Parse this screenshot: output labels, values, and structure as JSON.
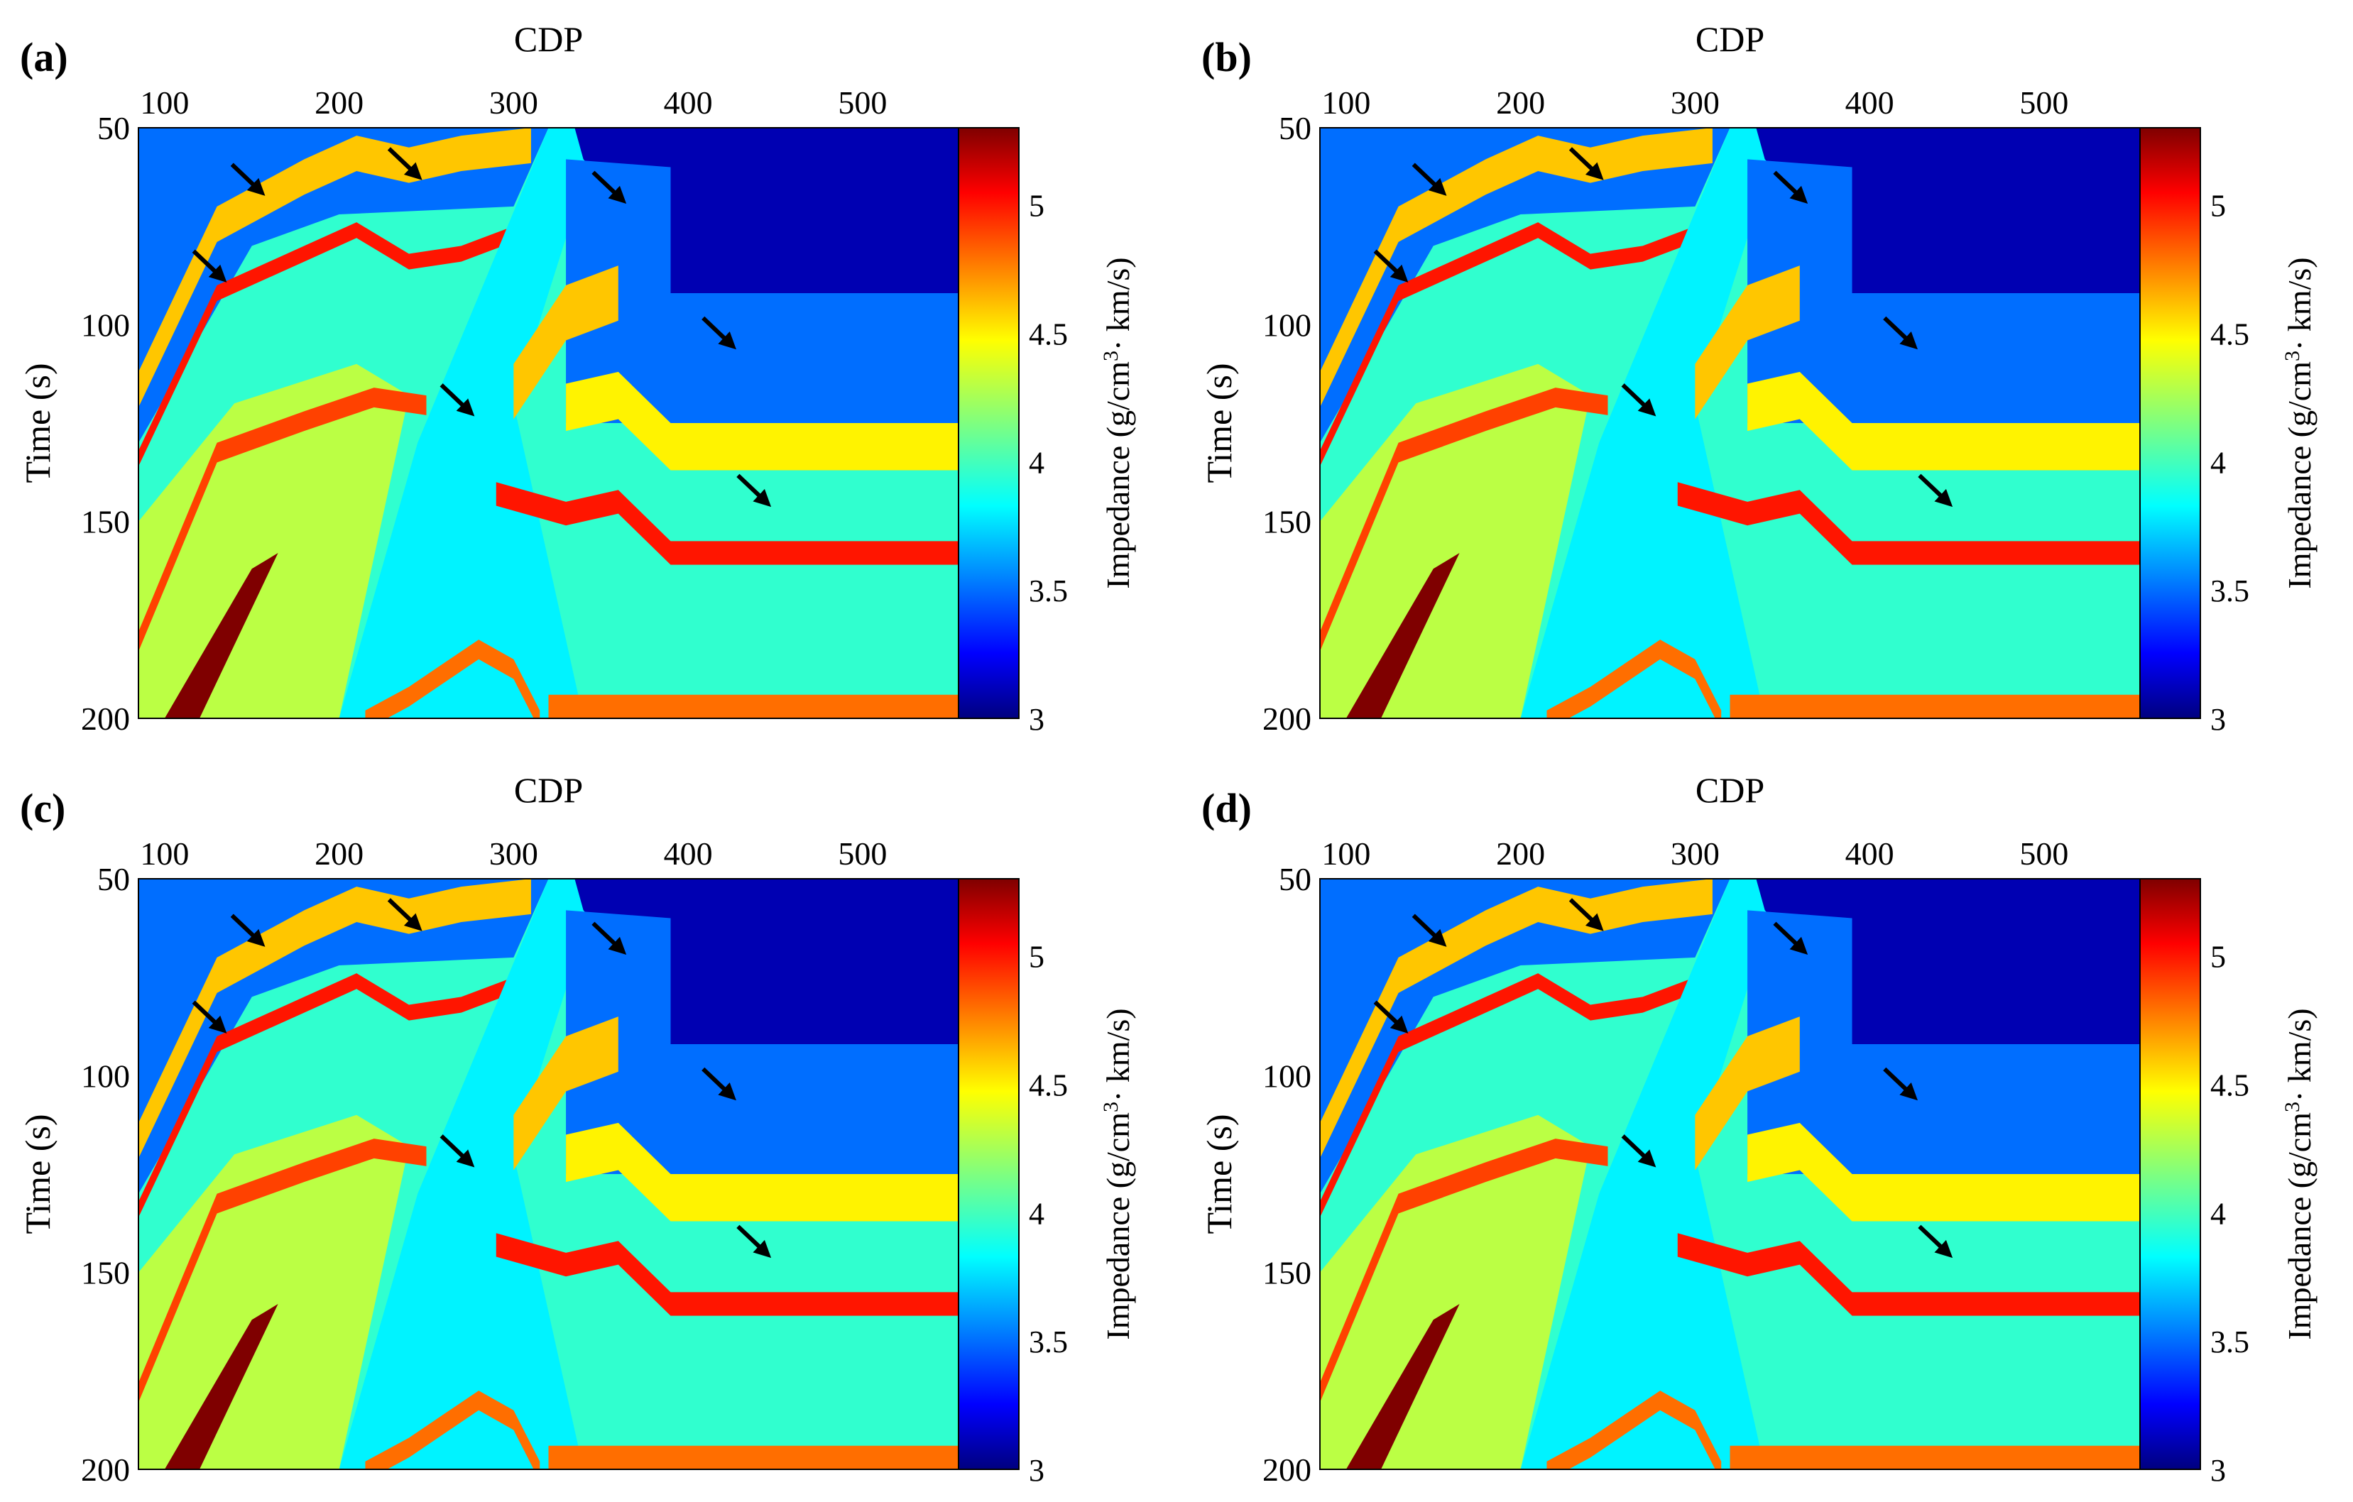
{
  "figure": {
    "panels": [
      {
        "label": "(a)",
        "xlabel": "CDP",
        "ylabel": "Time (s)",
        "colorbar_label": "Impedance (g/cm",
        "colorbar_sup": "3",
        "colorbar_label_tail": "· km/s)"
      },
      {
        "label": "(b)",
        "xlabel": "CDP",
        "ylabel": "Time (s)",
        "colorbar_label": "Impedance (g/cm",
        "colorbar_sup": "3",
        "colorbar_label_tail": "· km/s)"
      },
      {
        "label": "(c)",
        "xlabel": "CDP",
        "ylabel": "Time (s)",
        "colorbar_label": "Impedance (g/cm",
        "colorbar_sup": "3",
        "colorbar_label_tail": "· km/s)"
      },
      {
        "label": "(d)",
        "xlabel": "CDP",
        "ylabel": "Time (s)",
        "colorbar_label": "Impedance (g/cm",
        "colorbar_sup": "3",
        "colorbar_label_tail": "· km/s)"
      }
    ]
  },
  "chart_data": {
    "type": "heatmap",
    "title": "",
    "xlabel": "CDP",
    "ylabel": "Time (s)",
    "xlim": [
      85,
      555
    ],
    "ylim": [
      50,
      200
    ],
    "xticks": [
      100,
      200,
      300,
      400,
      500
    ],
    "yticks": [
      50,
      100,
      150,
      200
    ],
    "colorbar": {
      "label": "Impedance (g/cm3 · km/s)",
      "range": [
        3.0,
        5.3
      ],
      "ticks": [
        3,
        3.5,
        4,
        4.5,
        5
      ],
      "colormap": "jet"
    },
    "description_of_field": "Faulted layered impedance model; background ~3.8-4.2, layer bands 3.4-5.3",
    "layers_left_block": [
      {
        "name": "top-blue",
        "value": 3.5
      },
      {
        "name": "orange-band",
        "value": 4.6
      },
      {
        "name": "red-thin-1",
        "value": 5.0
      },
      {
        "name": "cyan-mid",
        "value": 3.9
      },
      {
        "name": "red-thin-2",
        "value": 4.9
      },
      {
        "name": "yellow-base",
        "value": 4.3
      },
      {
        "name": "dark-red-wedge",
        "value": 5.3
      }
    ],
    "layers_right_block": [
      {
        "name": "top-dark-blue",
        "value": 3.1
      },
      {
        "name": "blue",
        "value": 3.5
      },
      {
        "name": "orange-band",
        "value": 4.5
      },
      {
        "name": "red-band",
        "value": 5.0
      },
      {
        "name": "cyan-base",
        "value": 3.9
      },
      {
        "name": "bottom-orange",
        "value": 4.8
      }
    ],
    "arrows_panel_a_bc": [
      [
        150,
        64
      ],
      [
        128,
        86
      ],
      [
        240,
        60
      ],
      [
        357,
        66
      ],
      [
        420,
        103
      ],
      [
        270,
        120
      ],
      [
        440,
        143
      ]
    ],
    "arrows_panel_d": [
      [
        150,
        64
      ],
      [
        128,
        86
      ],
      [
        240,
        60
      ],
      [
        357,
        66
      ],
      [
        420,
        103
      ],
      [
        270,
        120
      ],
      [
        440,
        143
      ]
    ]
  }
}
